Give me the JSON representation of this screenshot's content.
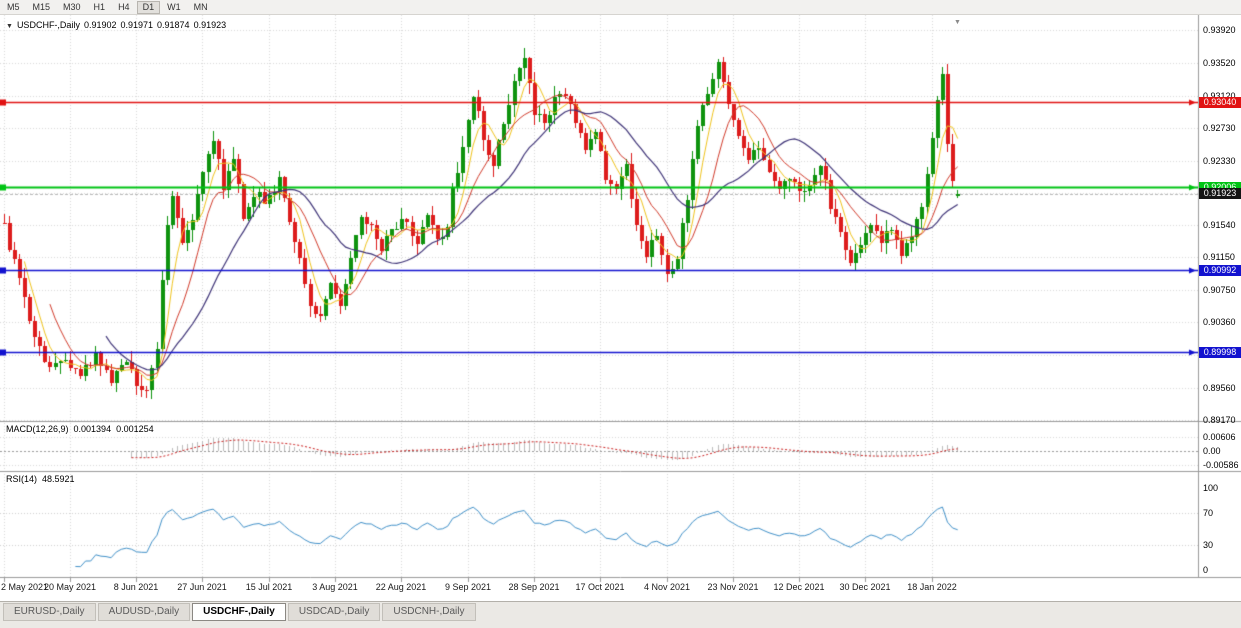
{
  "toolbar": {
    "timeframes": [
      "M5",
      "M15",
      "M30",
      "H1",
      "H4",
      "D1",
      "W1",
      "MN"
    ],
    "active": "D1"
  },
  "chart": {
    "symbol": "USDCHF-,Daily",
    "ohlc": {
      "open": "0.91902",
      "high": "0.91971",
      "low": "0.91874",
      "close": "0.91923"
    },
    "price_axis_labels": [
      "0.93920",
      "0.93520",
      "0.93120",
      "0.92730",
      "0.92330",
      "0.91930",
      "0.91540",
      "0.91150",
      "0.90750",
      "0.90360",
      "0.89960",
      "0.89560",
      "0.89170"
    ],
    "hlines": [
      {
        "price": 0.9304,
        "label": "0.93040",
        "color": "#e11212",
        "width": 1.4
      },
      {
        "price": 0.92006,
        "label": "0.92006",
        "color": "#00c414",
        "width": 2.2
      },
      {
        "price": 0.90992,
        "label": "0.90992",
        "color": "#1212cf",
        "width": 1.6
      },
      {
        "price": 0.89998,
        "label": "0.89998",
        "color": "#1212cf",
        "width": 1.6
      }
    ],
    "current_price": {
      "value": 0.91923,
      "label": "0.91923"
    },
    "date_labels": [
      "2 May 2021",
      "20 May 2021",
      "8 Jun 2021",
      "27 Jun 2021",
      "15 Jul 2021",
      "3 Aug 2021",
      "22 Aug 2021",
      "9 Sep 2021",
      "28 Sep 2021",
      "17 Oct 2021",
      "4 Nov 2021",
      "23 Nov 2021",
      "12 Dec 2021",
      "30 Dec 2021",
      "18 Jan 2022"
    ]
  },
  "macd": {
    "label": "MACD(12,26,9)",
    "value_main": "0.001394",
    "value_signal": "0.001254",
    "axis_labels": [
      "0.00606",
      "0.00",
      "-0.00586"
    ]
  },
  "rsi": {
    "label": "RSI(14)",
    "value": "48.5921",
    "axis_labels": [
      "100",
      "70",
      "30",
      "0"
    ]
  },
  "tabs": [
    {
      "label": "EURUSD-,Daily",
      "active": false
    },
    {
      "label": "AUDUSD-,Daily",
      "active": false
    },
    {
      "label": "USDCHF-,Daily",
      "active": true
    },
    {
      "label": "USDCAD-,Daily",
      "active": false
    },
    {
      "label": "USDCNH-,Daily",
      "active": false
    }
  ],
  "icons": {
    "collapse_arrow": "▼",
    "scroll_marker": "▼"
  },
  "colors": {
    "background": "#ffffff",
    "grid": "#d9d9d9",
    "pane_border": "#9a9a9a",
    "candle_up": "#0e930e",
    "candle_down": "#dd1c1c",
    "ma_fast": "#f0c41e",
    "ma_mid": "#d23b2b",
    "ma_slow": "#3f3478",
    "macd_histogram": "#bdbdbd",
    "macd_signal": "#cc2020",
    "rsi_line": "#4191c9",
    "current_tag_bg": "#141414",
    "axis_text": "#000000"
  },
  "chart_data": {
    "type": "candlestick",
    "title": "USDCHF Daily",
    "y_range": {
      "top": 0.9392,
      "bottom": 0.8917
    },
    "x_tick_dates": [
      "2 May 2021",
      "20 May 2021",
      "8 Jun 2021",
      "27 Jun 2021",
      "15 Jul 2021",
      "3 Aug 2021",
      "22 Aug 2021",
      "9 Sep 2021",
      "28 Sep 2021",
      "17 Oct 2021",
      "4 Nov 2021",
      "23 Nov 2021",
      "12 Dec 2021",
      "30 Dec 2021",
      "18 Jan 2022"
    ],
    "candles_per_tick": 13,
    "candle_count": 188,
    "close_anchors": [
      [
        0,
        0.9152
      ],
      [
        2,
        0.9108
      ],
      [
        4,
        0.9062
      ],
      [
        6,
        0.902
      ],
      [
        9,
        0.8978
      ],
      [
        12,
        0.8992
      ],
      [
        15,
        0.8968
      ],
      [
        18,
        0.8998
      ],
      [
        21,
        0.8968
      ],
      [
        24,
        0.899
      ],
      [
        26,
        0.896
      ],
      [
        28,
        0.8952
      ],
      [
        30,
        0.8998
      ],
      [
        31,
        0.9085
      ],
      [
        32,
        0.9158
      ],
      [
        33,
        0.9188
      ],
      [
        35,
        0.9128
      ],
      [
        37,
        0.9158
      ],
      [
        39,
        0.922
      ],
      [
        41,
        0.926
      ],
      [
        43,
        0.9198
      ],
      [
        45,
        0.9232
      ],
      [
        47,
        0.9168
      ],
      [
        49,
        0.919
      ],
      [
        52,
        0.9185
      ],
      [
        54,
        0.921
      ],
      [
        56,
        0.9162
      ],
      [
        58,
        0.9108
      ],
      [
        60,
        0.9058
      ],
      [
        62,
        0.9042
      ],
      [
        64,
        0.9078
      ],
      [
        66,
        0.9052
      ],
      [
        68,
        0.9118
      ],
      [
        70,
        0.916
      ],
      [
        72,
        0.915
      ],
      [
        74,
        0.9122
      ],
      [
        76,
        0.9148
      ],
      [
        79,
        0.9163
      ],
      [
        81,
        0.9132
      ],
      [
        83,
        0.9168
      ],
      [
        85,
        0.9132
      ],
      [
        87,
        0.9152
      ],
      [
        88,
        0.9195
      ],
      [
        90,
        0.9248
      ],
      [
        92,
        0.9315
      ],
      [
        94,
        0.9262
      ],
      [
        96,
        0.923
      ],
      [
        98,
        0.9282
      ],
      [
        100,
        0.9328
      ],
      [
        102,
        0.9352
      ],
      [
        104,
        0.9295
      ],
      [
        106,
        0.928
      ],
      [
        108,
        0.9306
      ],
      [
        110,
        0.9315
      ],
      [
        112,
        0.9282
      ],
      [
        114,
        0.925
      ],
      [
        116,
        0.9262
      ],
      [
        118,
        0.9215
      ],
      [
        120,
        0.92
      ],
      [
        122,
        0.9225
      ],
      [
        124,
        0.916
      ],
      [
        126,
        0.912
      ],
      [
        128,
        0.914
      ],
      [
        130,
        0.91
      ],
      [
        132,
        0.9115
      ],
      [
        134,
        0.9185
      ],
      [
        136,
        0.9278
      ],
      [
        138,
        0.9318
      ],
      [
        140,
        0.935
      ],
      [
        142,
        0.9295
      ],
      [
        144,
        0.9262
      ],
      [
        146,
        0.9238
      ],
      [
        148,
        0.9252
      ],
      [
        150,
        0.922
      ],
      [
        152,
        0.9198
      ],
      [
        154,
        0.9212
      ],
      [
        156,
        0.919
      ],
      [
        158,
        0.9205
      ],
      [
        160,
        0.923
      ],
      [
        162,
        0.918
      ],
      [
        164,
        0.914
      ],
      [
        166,
        0.911
      ],
      [
        168,
        0.9125
      ],
      [
        170,
        0.9155
      ],
      [
        172,
        0.9135
      ],
      [
        174,
        0.9152
      ],
      [
        176,
        0.912
      ],
      [
        178,
        0.9145
      ],
      [
        180,
        0.918
      ],
      [
        181,
        0.9215
      ],
      [
        182,
        0.9262
      ],
      [
        183,
        0.9305
      ],
      [
        184,
        0.934
      ],
      [
        185,
        0.9258
      ],
      [
        186,
        0.9202
      ],
      [
        187,
        0.91923
      ]
    ],
    "last_candle": {
      "open": 0.91902,
      "high": 0.91971,
      "low": 0.91874,
      "close": 0.91923
    },
    "horizontal_levels": [
      0.9304,
      0.92006,
      0.90992,
      0.89998
    ],
    "moving_average_periods": [
      5,
      10,
      21
    ],
    "indicators": {
      "macd": {
        "fast": 12,
        "slow": 26,
        "signal": 9,
        "current_main": 0.001394,
        "current_signal": 0.001254,
        "axis_max": 0.00606,
        "axis_min": -0.00586
      },
      "rsi": {
        "period": 14,
        "current": 48.5921,
        "levels": [
          70,
          30
        ]
      }
    }
  }
}
